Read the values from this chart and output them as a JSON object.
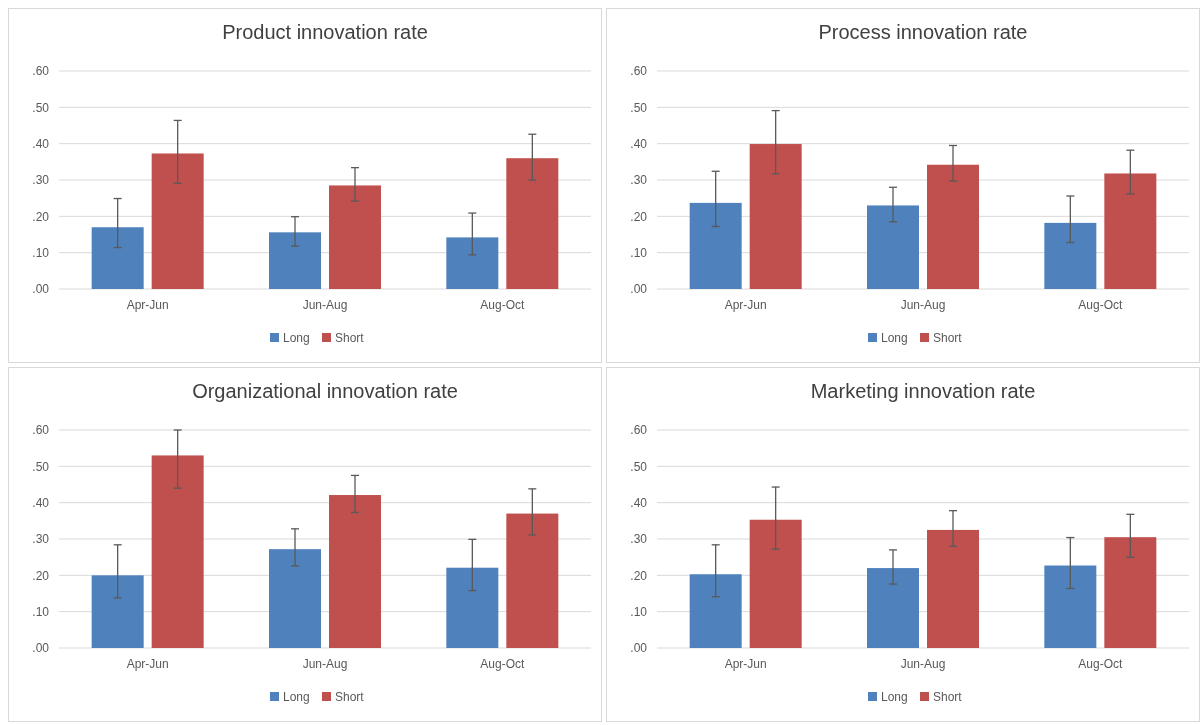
{
  "chart_data": [
    {
      "type": "bar",
      "title": "Product innovation rate",
      "categories": [
        "Apr-Jun",
        "Jun-Aug",
        "Aug-Oct"
      ],
      "ylim": [
        0,
        0.6
      ],
      "yticks": [
        {
          "value": 0,
          "label": ".00"
        },
        {
          "value": 0.1,
          "label": ".10"
        },
        {
          "value": 0.2,
          "label": ".20"
        },
        {
          "value": 0.3,
          "label": ".30"
        },
        {
          "value": 0.4,
          "label": ".40"
        },
        {
          "value": 0.5,
          "label": ".50"
        },
        {
          "value": 0.6,
          "label": ".60"
        }
      ],
      "grid": "y",
      "legend": "bottom",
      "series": [
        {
          "name": "Long",
          "color": "#4f81bd",
          "values": [
            0.17,
            0.156,
            0.142
          ],
          "errors": [
            [
              0.114,
              0.249
            ],
            [
              0.118,
              0.199
            ],
            [
              0.094,
              0.209
            ]
          ]
        },
        {
          "name": "Short",
          "color": "#c0504d",
          "values": [
            0.373,
            0.285,
            0.36
          ],
          "errors": [
            [
              0.291,
              0.464
            ],
            [
              0.242,
              0.334
            ],
            [
              0.3,
              0.426
            ]
          ]
        }
      ]
    },
    {
      "type": "bar",
      "title": "Process innovation rate",
      "categories": [
        "Apr-Jun",
        "Jun-Aug",
        "Aug-Oct"
      ],
      "ylim": [
        0,
        0.6
      ],
      "yticks": [
        {
          "value": 0,
          "label": ".00"
        },
        {
          "value": 0.1,
          "label": ".10"
        },
        {
          "value": 0.2,
          "label": ".20"
        },
        {
          "value": 0.3,
          "label": ".30"
        },
        {
          "value": 0.4,
          "label": ".40"
        },
        {
          "value": 0.5,
          "label": ".50"
        },
        {
          "value": 0.6,
          "label": ".60"
        }
      ],
      "grid": "y",
      "legend": "bottom",
      "series": [
        {
          "name": "Long",
          "color": "#4f81bd",
          "values": [
            0.237,
            0.23,
            0.182
          ],
          "errors": [
            [
              0.172,
              0.324
            ],
            [
              0.185,
              0.28
            ],
            [
              0.128,
              0.256
            ]
          ]
        },
        {
          "name": "Short",
          "color": "#c0504d",
          "values": [
            0.399,
            0.342,
            0.318
          ],
          "errors": [
            [
              0.317,
              0.491
            ],
            [
              0.297,
              0.395
            ],
            [
              0.262,
              0.382
            ]
          ]
        }
      ]
    },
    {
      "type": "bar",
      "title": "Organizational innovation rate",
      "categories": [
        "Apr-Jun",
        "Jun-Aug",
        "Aug-Oct"
      ],
      "ylim": [
        0,
        0.6
      ],
      "yticks": [
        {
          "value": 0,
          "label": ".00"
        },
        {
          "value": 0.1,
          "label": ".10"
        },
        {
          "value": 0.2,
          "label": ".20"
        },
        {
          "value": 0.3,
          "label": ".30"
        },
        {
          "value": 0.4,
          "label": ".40"
        },
        {
          "value": 0.5,
          "label": ".50"
        },
        {
          "value": 0.6,
          "label": ".60"
        }
      ],
      "grid": "y",
      "legend": "bottom",
      "series": [
        {
          "name": "Long",
          "color": "#4f81bd",
          "values": [
            0.2,
            0.272,
            0.221
          ],
          "errors": [
            [
              0.138,
              0.284
            ],
            [
              0.226,
              0.328
            ],
            [
              0.158,
              0.299
            ]
          ]
        },
        {
          "name": "Short",
          "color": "#c0504d",
          "values": [
            0.53,
            0.421,
            0.37
          ],
          "errors": [
            [
              0.44,
              0.6
            ],
            [
              0.373,
              0.475
            ],
            [
              0.311,
              0.438
            ]
          ]
        }
      ]
    },
    {
      "type": "bar",
      "title": "Marketing innovation rate",
      "categories": [
        "Apr-Jun",
        "Jun-Aug",
        "Aug-Oct"
      ],
      "ylim": [
        0,
        0.6
      ],
      "yticks": [
        {
          "value": 0,
          "label": ".00"
        },
        {
          "value": 0.1,
          "label": ".10"
        },
        {
          "value": 0.2,
          "label": ".20"
        },
        {
          "value": 0.3,
          "label": ".30"
        },
        {
          "value": 0.4,
          "label": ".40"
        },
        {
          "value": 0.5,
          "label": ".50"
        },
        {
          "value": 0.6,
          "label": ".60"
        }
      ],
      "grid": "y",
      "legend": "bottom",
      "series": [
        {
          "name": "Long",
          "color": "#4f81bd",
          "values": [
            0.203,
            0.22,
            0.227
          ],
          "errors": [
            [
              0.141,
              0.284
            ],
            [
              0.176,
              0.27
            ],
            [
              0.164,
              0.304
            ]
          ]
        },
        {
          "name": "Short",
          "color": "#c0504d",
          "values": [
            0.353,
            0.325,
            0.305
          ],
          "errors": [
            [
              0.272,
              0.443
            ],
            [
              0.28,
              0.378
            ],
            [
              0.25,
              0.368
            ]
          ]
        }
      ]
    }
  ]
}
